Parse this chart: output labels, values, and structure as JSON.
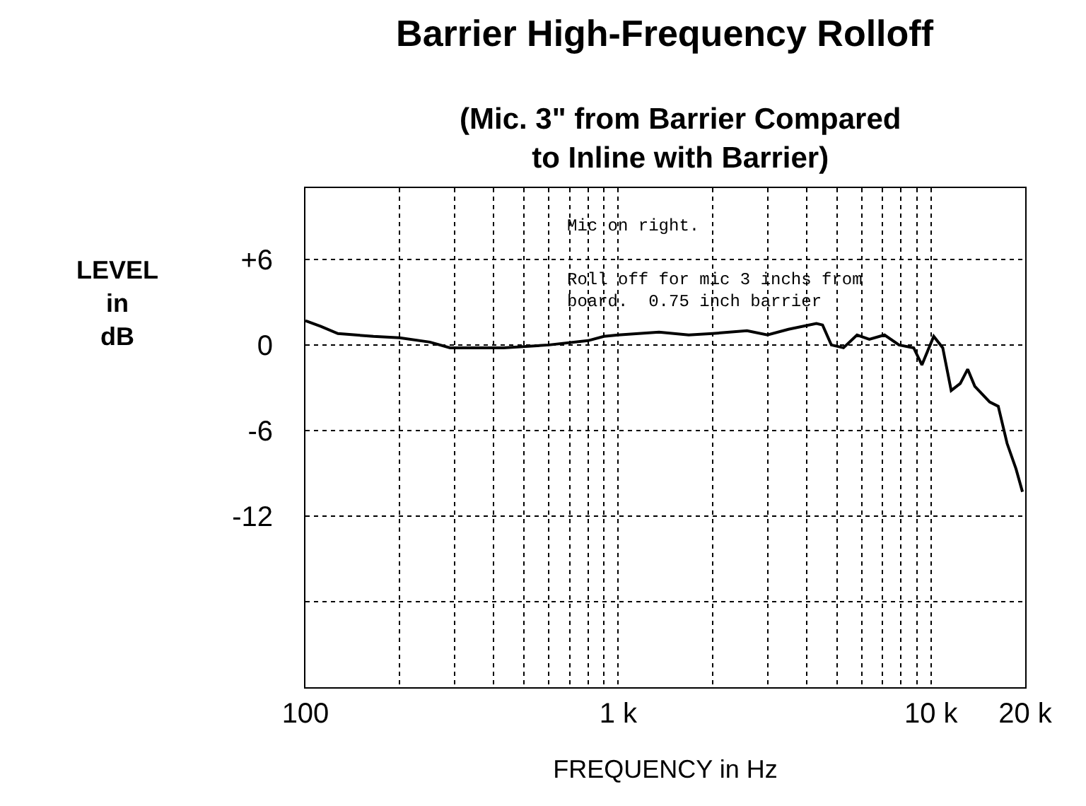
{
  "chart_data": {
    "type": "line",
    "title": "Barrier High-Frequency Rolloff",
    "subtitle": "(Mic. 3\" from Barrier Compared\nto Inline with Barrier)",
    "xlabel": "FREQUENCY in Hz",
    "ylabel": "LEVEL\nin\ndB",
    "annotations": [
      "Mic on right.",
      "Roll off for mic 3 inchs from\nboard.  0.75 inch barrier"
    ],
    "log": "x",
    "x": [
      100,
      112,
      127,
      165,
      200,
      250,
      290,
      430,
      600,
      800,
      900,
      1000,
      1350,
      1680,
      2000,
      2580,
      3000,
      3500,
      4300,
      4500,
      4800,
      5250,
      5800,
      6350,
      7100,
      7900,
      8800,
      9350,
      10200,
      10900,
      11600,
      12400,
      13100,
      13800,
      15400,
      16400,
      17500,
      18700,
      19600
    ],
    "series": [
      {
        "color": "#000000",
        "values": [
          1.7,
          1.3,
          0.8,
          0.6,
          0.5,
          0.2,
          -0.2,
          -0.2,
          0,
          0.3,
          0.6,
          0.7,
          0.9,
          0.7,
          0.8,
          1.0,
          0.7,
          1.1,
          1.5,
          1.4,
          0,
          -0.2,
          0.7,
          0.4,
          0.7,
          0,
          -0.2,
          -1.4,
          0.6,
          -0.2,
          -3.2,
          -2.7,
          -1.7,
          -2.9,
          -4.0,
          -4.3,
          -6.9,
          -8.7,
          -10.3
        ]
      }
    ],
    "xlim": [
      100,
      20000
    ],
    "xticks": [
      100,
      {
        "value": 200,
        "label": null
      },
      {
        "value": 300,
        "label": null
      },
      {
        "value": 400,
        "label": null
      },
      {
        "value": 500,
        "label": null
      },
      {
        "value": 600,
        "label": null
      },
      {
        "value": 700,
        "label": null
      },
      {
        "value": 800,
        "label": null
      },
      {
        "value": 900,
        "label": null
      },
      {
        "value": 1000,
        "label": "1 k"
      },
      {
        "value": 2000,
        "label": null
      },
      {
        "value": 3000,
        "label": null
      },
      {
        "value": 4000,
        "label": null
      },
      {
        "value": 5000,
        "label": null
      },
      {
        "value": 6000,
        "label": null
      },
      {
        "value": 7000,
        "label": null
      },
      {
        "value": 8000,
        "label": null
      },
      {
        "value": 9000,
        "label": null
      },
      {
        "value": 10000,
        "label": "10 k"
      },
      {
        "value": 20000,
        "label": "20 k"
      }
    ],
    "ylim": [
      -24,
      11
    ],
    "yticks": [
      {
        "value": 6,
        "label": "+6"
      },
      0,
      -6,
      -12,
      {
        "value": -18,
        "label": null
      }
    ],
    "grid": true,
    "marker": "none",
    "line_style": "solid"
  }
}
